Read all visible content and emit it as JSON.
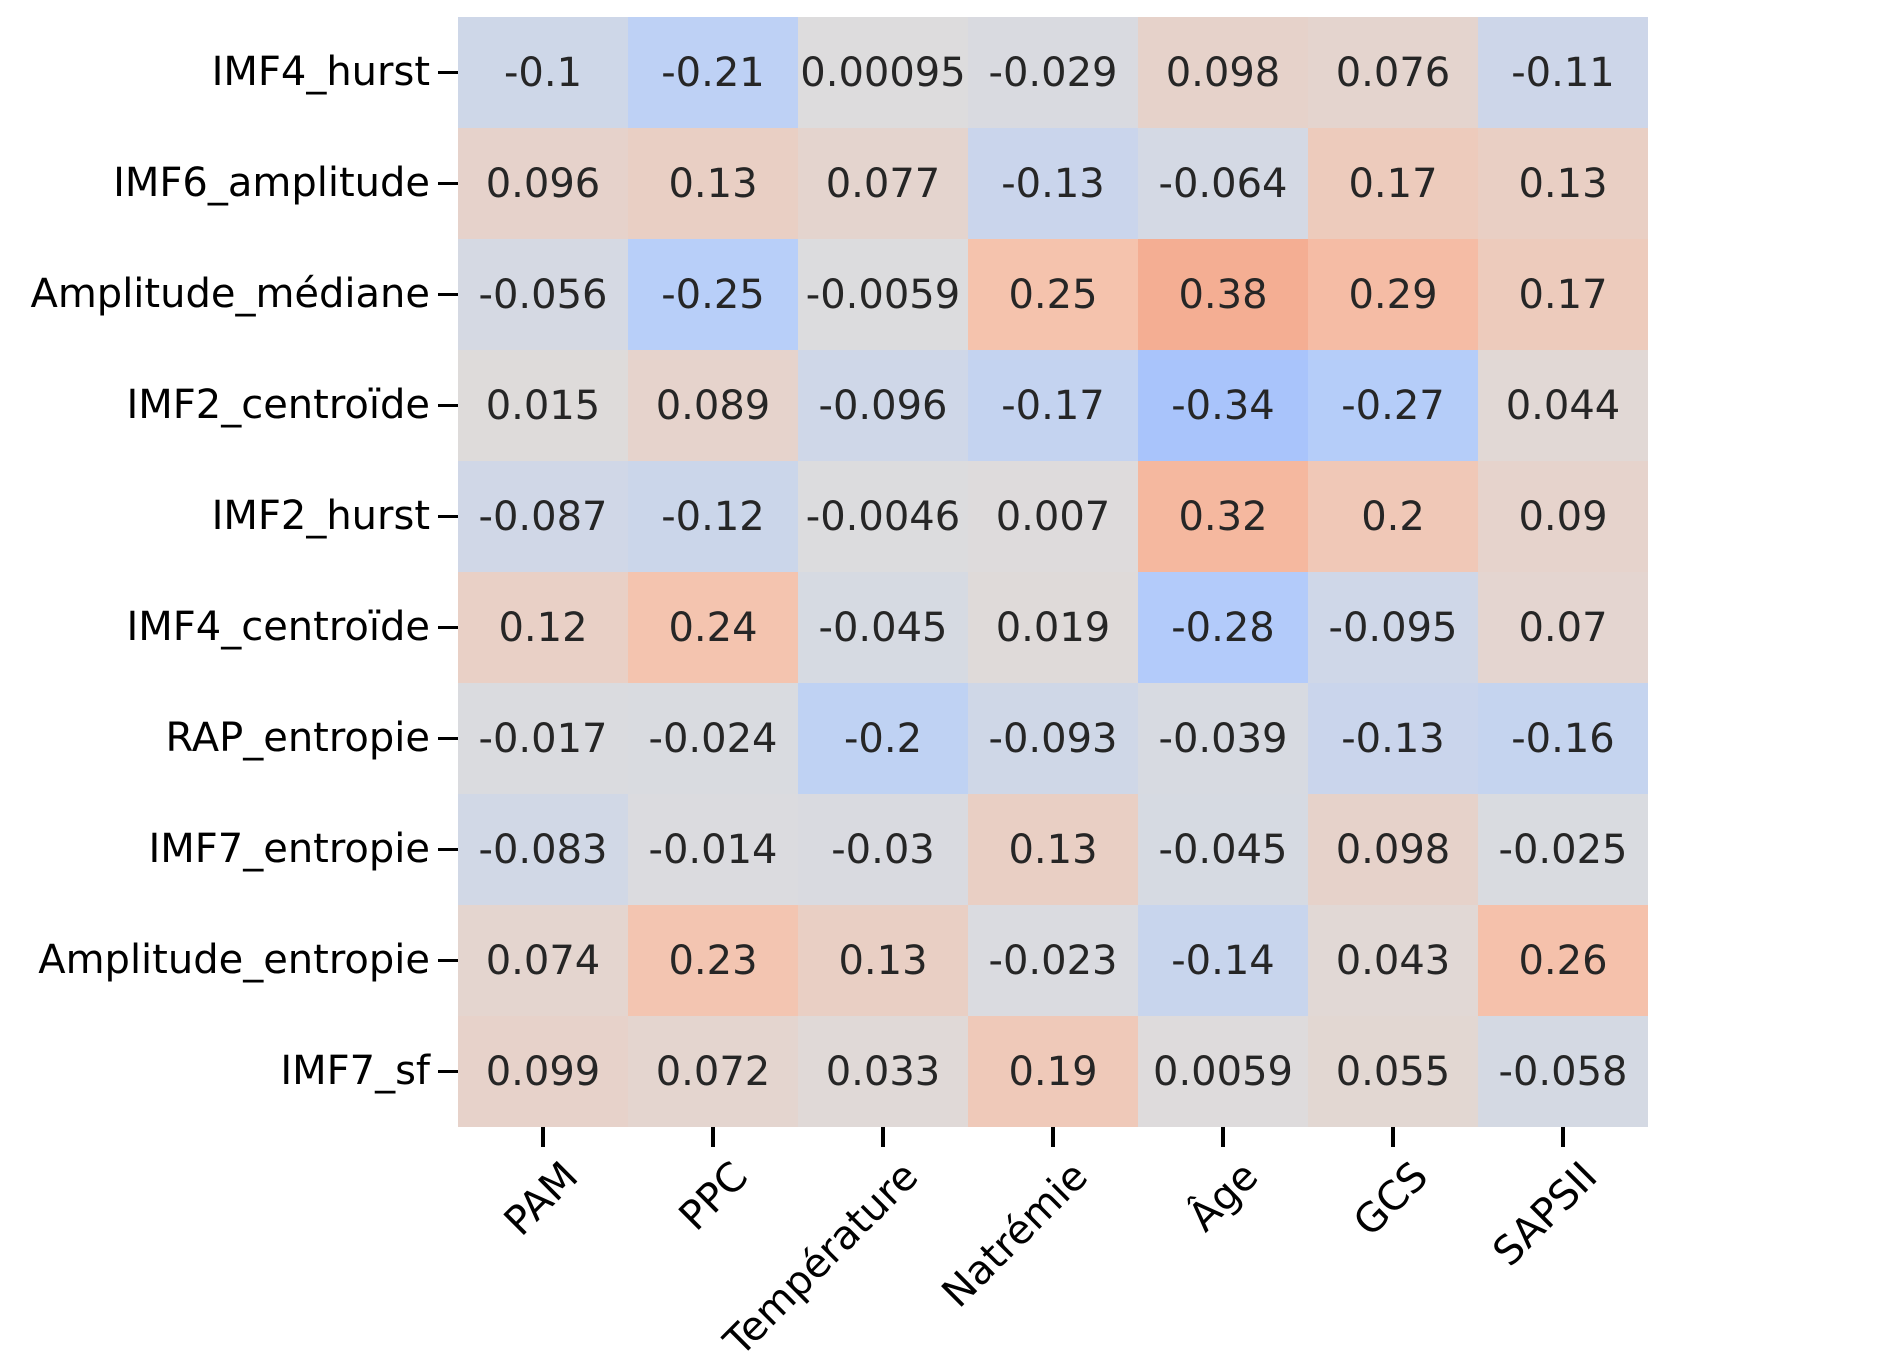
{
  "figure": {
    "background": "#ffffff",
    "annotation_text_color": "#262626",
    "tick_color": "#000000",
    "tick_label_color": "#000000"
  },
  "chart_data": {
    "type": "heatmap",
    "title": "",
    "xlabel": "",
    "ylabel": "",
    "legend_position": "none",
    "grid": "off",
    "colorbar_shown": false,
    "x_tick_rotation_deg": 45,
    "rows": [
      "IMF4_hurst",
      "IMF6_amplitude",
      "Amplitude_médiane",
      "IMF2_centroïde",
      "IMF2_hurst",
      "IMF4_centroïde",
      "RAP_entropie",
      "IMF7_entropie",
      "Amplitude_entropie",
      "IMF7_sf"
    ],
    "columns": [
      "PAM",
      "PPC",
      "Température",
      "Natrémie",
      "Âge",
      "GCS",
      "SAPSII"
    ],
    "values": [
      [
        "-0.1",
        "-0.21",
        "0.00095",
        "-0.029",
        "0.098",
        "0.076",
        "-0.11"
      ],
      [
        "0.096",
        "0.13",
        "0.077",
        "-0.13",
        "-0.064",
        "0.17",
        "0.13"
      ],
      [
        "-0.056",
        "-0.25",
        "-0.0059",
        "0.25",
        "0.38",
        "0.29",
        "0.17"
      ],
      [
        "0.015",
        "0.089",
        "-0.096",
        "-0.17",
        "-0.34",
        "-0.27",
        "0.044"
      ],
      [
        "-0.087",
        "-0.12",
        "-0.0046",
        "0.007",
        "0.32",
        "0.2",
        "0.09"
      ],
      [
        "0.12",
        "0.24",
        "-0.045",
        "0.019",
        "-0.28",
        "-0.095",
        "0.07"
      ],
      [
        "-0.017",
        "-0.024",
        "-0.2",
        "-0.093",
        "-0.039",
        "-0.13",
        "-0.16"
      ],
      [
        "-0.083",
        "-0.014",
        "-0.03",
        "0.13",
        "-0.045",
        "0.098",
        "-0.025"
      ],
      [
        "0.074",
        "0.23",
        "0.13",
        "-0.023",
        "-0.14",
        "0.043",
        "0.26"
      ],
      [
        "0.099",
        "0.072",
        "0.033",
        "0.19",
        "0.0059",
        "0.055",
        "-0.058"
      ]
    ],
    "colormap": {
      "name": "coolwarm",
      "vmin": -1,
      "vmax": 1,
      "anchors": [
        [
          0.0,
          "#3B4CC0"
        ],
        [
          0.125,
          "#6182EA"
        ],
        [
          0.25,
          "#8DB0FE"
        ],
        [
          0.375,
          "#B8CFF9"
        ],
        [
          0.5,
          "#DDDCDD"
        ],
        [
          0.625,
          "#F5C3AD"
        ],
        [
          0.75,
          "#F49A7B"
        ],
        [
          0.875,
          "#DE614D"
        ],
        [
          1.0,
          "#B40426"
        ]
      ]
    }
  }
}
